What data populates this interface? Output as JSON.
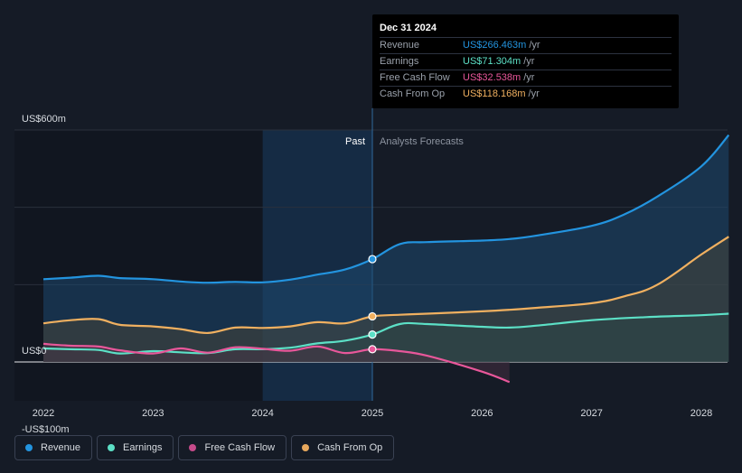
{
  "tooltip": {
    "date": "Dec 31 2024",
    "rows": [
      {
        "label": "Revenue",
        "value": "US$266.463m",
        "unit": "/yr",
        "color": "#2394df"
      },
      {
        "label": "Earnings",
        "value": "US$71.304m",
        "unit": "/yr",
        "color": "#5ce0c6"
      },
      {
        "label": "Free Cash Flow",
        "value": "US$32.538m",
        "unit": "/yr",
        "color": "#e8579a"
      },
      {
        "label": "Cash From Op",
        "value": "US$118.168m",
        "unit": "/yr",
        "color": "#f0b060"
      }
    ]
  },
  "legend": [
    {
      "label": "Revenue",
      "color": "#2394df"
    },
    {
      "label": "Earnings",
      "color": "#5ce0c6"
    },
    {
      "label": "Free Cash Flow",
      "color": "#c64b8b"
    },
    {
      "label": "Cash From Op",
      "color": "#e7a85d"
    }
  ],
  "chart_data": {
    "type": "line",
    "title": "",
    "past_label": "Past",
    "forecast_label": "Analysts Forecasts",
    "y_tick_labels": [
      {
        "value": 600,
        "label": "US$600m"
      },
      {
        "value": 0,
        "label": "US$0"
      },
      {
        "value": -100,
        "label": "-US$100m"
      }
    ],
    "ylim": [
      -100,
      600
    ],
    "xlim": [
      2022,
      2028.25
    ],
    "x_ticks": [
      {
        "value": 2022,
        "label": "2022"
      },
      {
        "value": 2023,
        "label": "2023"
      },
      {
        "value": 2024,
        "label": "2024"
      },
      {
        "value": 2025,
        "label": "2025"
      },
      {
        "value": 2026,
        "label": "2026"
      },
      {
        "value": 2027,
        "label": "2027"
      },
      {
        "value": 2028,
        "label": "2028"
      }
    ],
    "past_region": {
      "start": 2024,
      "end": 2025
    },
    "marker_x": 2025,
    "series": [
      {
        "name": "Revenue",
        "color": "#2394df",
        "x": [
          2022,
          2022.25,
          2022.5,
          2022.7,
          2023,
          2023.3,
          2023.5,
          2023.75,
          2024,
          2024.25,
          2024.5,
          2024.75,
          2025,
          2025.25,
          2025.5,
          2026,
          2026.25,
          2026.5,
          2027,
          2027.3,
          2027.6,
          2028,
          2028.25
        ],
        "values": [
          214,
          218,
          223,
          217,
          214,
          207,
          205,
          207,
          206,
          213,
          226,
          239,
          266,
          305,
          310,
          314,
          318,
          327,
          352,
          382,
          428,
          506,
          587
        ],
        "markers": [
          {
            "x": 2025,
            "y": 266
          }
        ]
      },
      {
        "name": "Earnings",
        "color": "#5ce0c6",
        "x": [
          2022,
          2022.25,
          2022.5,
          2022.7,
          2023,
          2023.25,
          2023.5,
          2023.75,
          2024,
          2024.25,
          2024.5,
          2024.75,
          2025,
          2025.25,
          2025.5,
          2026,
          2026.25,
          2026.5,
          2027,
          2027.5,
          2028,
          2028.25
        ],
        "values": [
          35,
          33,
          31,
          22,
          28,
          25,
          23,
          33,
          33,
          37,
          48,
          55,
          71,
          98,
          98,
          91,
          89,
          94,
          108,
          116,
          121,
          125
        ],
        "markers": [
          {
            "x": 2025,
            "y": 71
          }
        ]
      },
      {
        "name": "Free Cash Flow",
        "color": "#e8579a",
        "x": [
          2022,
          2022.25,
          2022.5,
          2022.7,
          2023,
          2023.25,
          2023.5,
          2023.75,
          2024,
          2024.25,
          2024.5,
          2024.75,
          2025,
          2025.25,
          2025.5,
          2026,
          2026.25
        ],
        "values": [
          47,
          42,
          40,
          30,
          22,
          35,
          24,
          38,
          34,
          29,
          40,
          23,
          33,
          28,
          16,
          -25,
          -52
        ],
        "markers": [
          {
            "x": 2025,
            "y": 33
          }
        ]
      },
      {
        "name": "Cash From Op",
        "color": "#f0b060",
        "x": [
          2022,
          2022.25,
          2022.5,
          2022.7,
          2023,
          2023.25,
          2023.5,
          2023.75,
          2024,
          2024.25,
          2024.5,
          2024.75,
          2025,
          2025.25,
          2025.5,
          2026,
          2026.25,
          2026.5,
          2027,
          2027.3,
          2027.6,
          2028,
          2028.25
        ],
        "values": [
          100,
          108,
          111,
          96,
          92,
          85,
          75,
          89,
          88,
          92,
          103,
          100,
          118,
          122,
          125,
          131,
          135,
          140,
          152,
          170,
          200,
          278,
          324
        ],
        "markers": [
          {
            "x": 2025,
            "y": 118
          }
        ]
      }
    ]
  }
}
